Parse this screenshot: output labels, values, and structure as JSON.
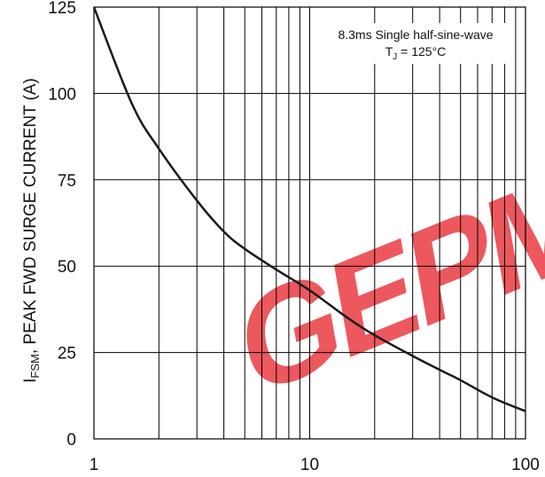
{
  "chart_data": {
    "type": "line",
    "title": "",
    "xlabel": "",
    "ylabel": "I",
    "ylabel_subscript": "FSM",
    "ylabel_rest": ", PEAK FWD SURGE CURRENT (A)",
    "x_scale": "log",
    "xlim": [
      1,
      100
    ],
    "ylim": [
      0,
      125
    ],
    "x_ticks": [
      "1",
      "10",
      "100"
    ],
    "y_ticks": [
      "0",
      "25",
      "50",
      "75",
      "100",
      "125"
    ],
    "grid": true,
    "annotation": {
      "line1": "8.3ms Single half-sine-wave",
      "line2_prefix": "T",
      "line2_subscript": "J",
      "line2_rest": " = 125°C"
    },
    "series": [
      {
        "x": [
          1,
          1.5,
          2,
          3,
          4,
          5,
          7,
          10,
          15,
          20,
          30,
          40,
          50,
          70,
          100
        ],
        "values": [
          125,
          97,
          84,
          69,
          60,
          55,
          49,
          43,
          35,
          30,
          24,
          20,
          17,
          12,
          8
        ]
      }
    ],
    "watermark": "GEPM",
    "watermark_color": "#e8343a",
    "line_color": "#1a1a1a",
    "grid_color": "#000000"
  }
}
